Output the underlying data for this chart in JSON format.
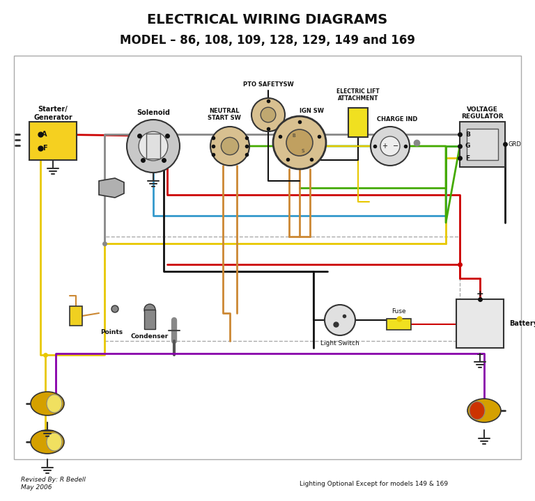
{
  "title1": "ELECTRICAL WIRING DIAGRAMS",
  "title2": "MODEL – 86, 108, 109, 128, 129, 149 and 169",
  "footer_left": "Revised By: R Bedell\nMay 2006",
  "footer_right": "Lighting Optional Except for models 149 & 169",
  "bg_color": "#ffffff",
  "wire_red": "#cc0000",
  "wire_yellow": "#e8c800",
  "wire_blue": "#3399cc",
  "wire_green": "#44aa00",
  "wire_black": "#111111",
  "wire_purple": "#8800aa",
  "wire_orange": "#cc8833",
  "wire_gray": "#888888"
}
